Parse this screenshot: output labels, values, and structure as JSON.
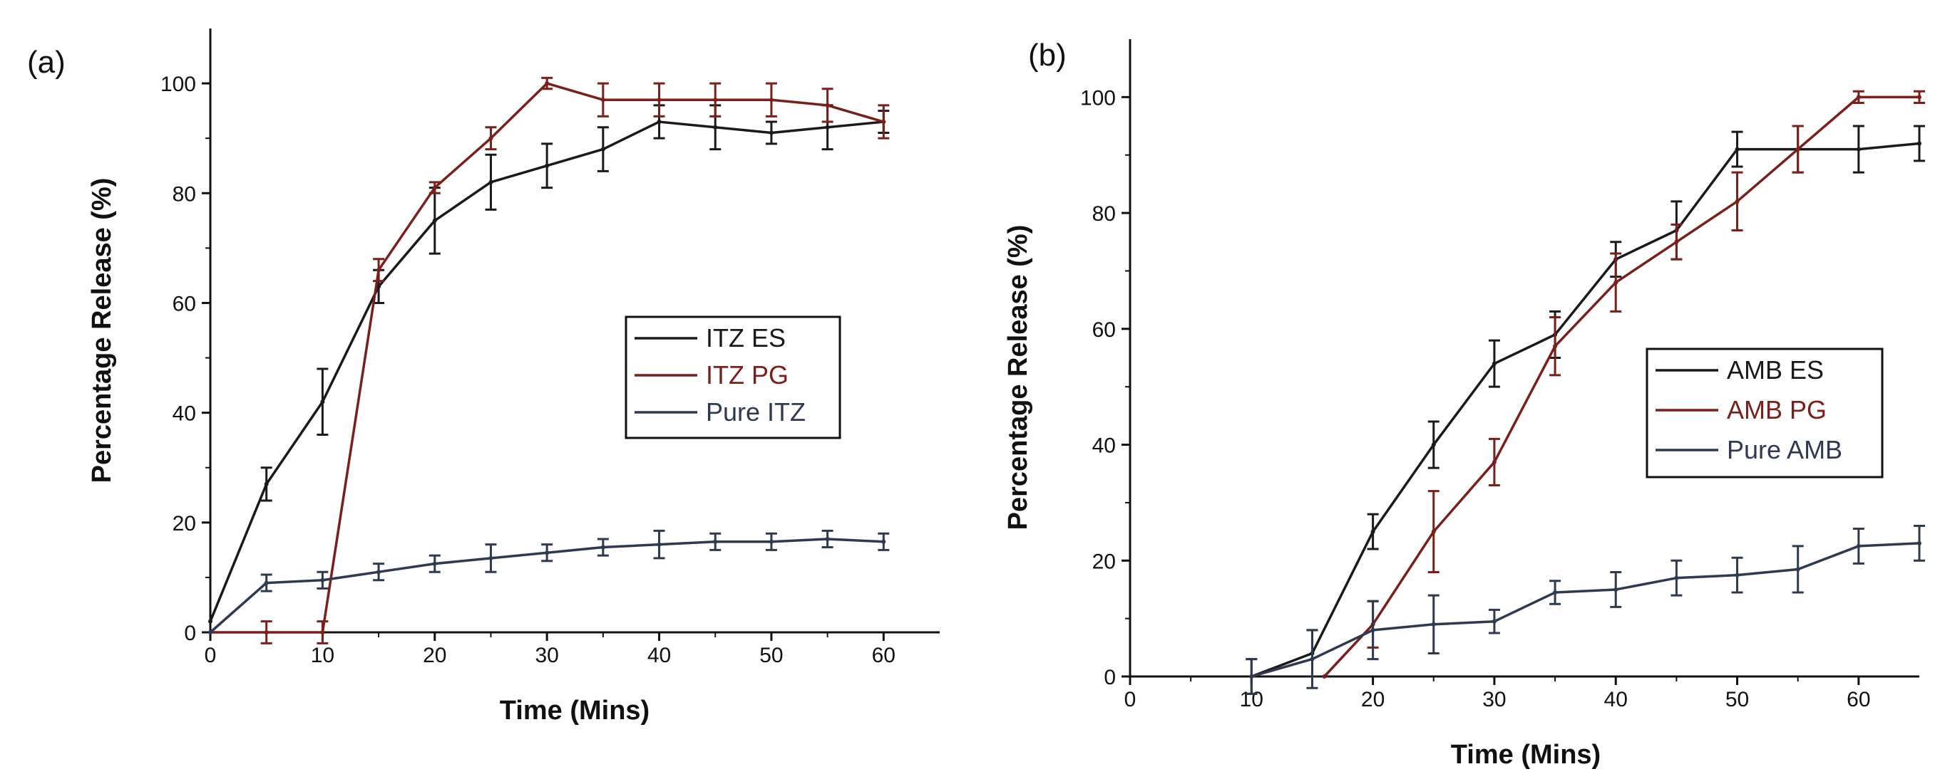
{
  "chart_data": [
    {
      "type": "line",
      "panel_label": "(a)",
      "xlabel": "Time (Mins)",
      "ylabel": "Percentage Release (%)",
      "xlim": [
        0,
        65
      ],
      "ylim": [
        0,
        110
      ],
      "xticks": [
        0,
        10,
        20,
        30,
        40,
        50,
        60
      ],
      "yticks": [
        0,
        20,
        40,
        60,
        80,
        100
      ],
      "legend_position": "center-right",
      "series": [
        {
          "name": "ITZ ES",
          "color": "#1a1a1a",
          "x": [
            0,
            5,
            10,
            15,
            20,
            25,
            30,
            35,
            40,
            45,
            50,
            55,
            60
          ],
          "values": [
            2,
            27,
            42,
            63,
            75,
            82,
            85,
            88,
            93,
            92,
            91,
            92,
            93
          ],
          "errors": [
            0,
            3,
            6,
            3,
            6,
            5,
            4,
            4,
            3,
            4,
            2,
            4,
            2
          ]
        },
        {
          "name": "ITZ PG",
          "color": "#7a1f1a",
          "x": [
            0,
            5,
            10,
            15,
            20,
            25,
            30,
            35,
            40,
            45,
            50,
            55,
            60
          ],
          "values": [
            0,
            0,
            0,
            66,
            81,
            90,
            100,
            97,
            97,
            97,
            97,
            96,
            93
          ],
          "errors": [
            0,
            2,
            2,
            2,
            1,
            2,
            1,
            3,
            3,
            3,
            3,
            3,
            3
          ]
        },
        {
          "name": "Pure ITZ",
          "color": "#2d3a4f",
          "x": [
            0,
            5,
            10,
            15,
            20,
            25,
            30,
            35,
            40,
            45,
            50,
            55,
            60
          ],
          "values": [
            0,
            9,
            9.5,
            11,
            12.5,
            13.5,
            14.5,
            15.5,
            16,
            16.5,
            16.5,
            17,
            16.5
          ],
          "errors": [
            0,
            1.5,
            1.5,
            1.5,
            1.5,
            2.5,
            1.5,
            1.5,
            2.5,
            1.5,
            1.5,
            1.5,
            1.5
          ]
        }
      ]
    },
    {
      "type": "line",
      "panel_label": "(b)",
      "xlabel": "Time (Mins)",
      "ylabel": "Percentage Release (%)",
      "xlim": [
        0,
        65
      ],
      "ylim": [
        0,
        110
      ],
      "xticks": [
        0,
        10,
        20,
        30,
        40,
        50,
        60
      ],
      "yticks": [
        0,
        20,
        40,
        60,
        80,
        100
      ],
      "legend_position": "center-right",
      "series": [
        {
          "name": "AMB ES",
          "color": "#1a1a1a",
          "x": [
            10,
            15,
            20,
            25,
            30,
            35,
            40,
            45,
            50,
            55,
            60,
            65
          ],
          "values": [
            0,
            4,
            25,
            40,
            54,
            59,
            72,
            77,
            91,
            91,
            91,
            92
          ],
          "errors": [
            3,
            4,
            3,
            4,
            4,
            4,
            3,
            5,
            3,
            4,
            4,
            3
          ]
        },
        {
          "name": "AMB PG",
          "color": "#7a1f1a",
          "x": [
            16,
            20,
            25,
            30,
            35,
            40,
            45,
            50,
            55,
            60,
            65
          ],
          "values": [
            0,
            9,
            25,
            37,
            57,
            68,
            75,
            82,
            91,
            100,
            100
          ],
          "errors": [
            0,
            4,
            7,
            4,
            5,
            5,
            3,
            5,
            4,
            1,
            1
          ]
        },
        {
          "name": "Pure AMB",
          "color": "#2d3a4f",
          "x": [
            10,
            15,
            20,
            25,
            30,
            35,
            40,
            45,
            50,
            55,
            60,
            65
          ],
          "values": [
            0,
            3,
            8,
            9,
            9.5,
            14.5,
            15,
            17,
            17.5,
            18.5,
            22.5,
            23
          ],
          "errors": [
            3,
            5,
            5,
            5,
            2,
            2,
            3,
            3,
            3,
            4,
            3,
            3
          ]
        }
      ]
    }
  ]
}
